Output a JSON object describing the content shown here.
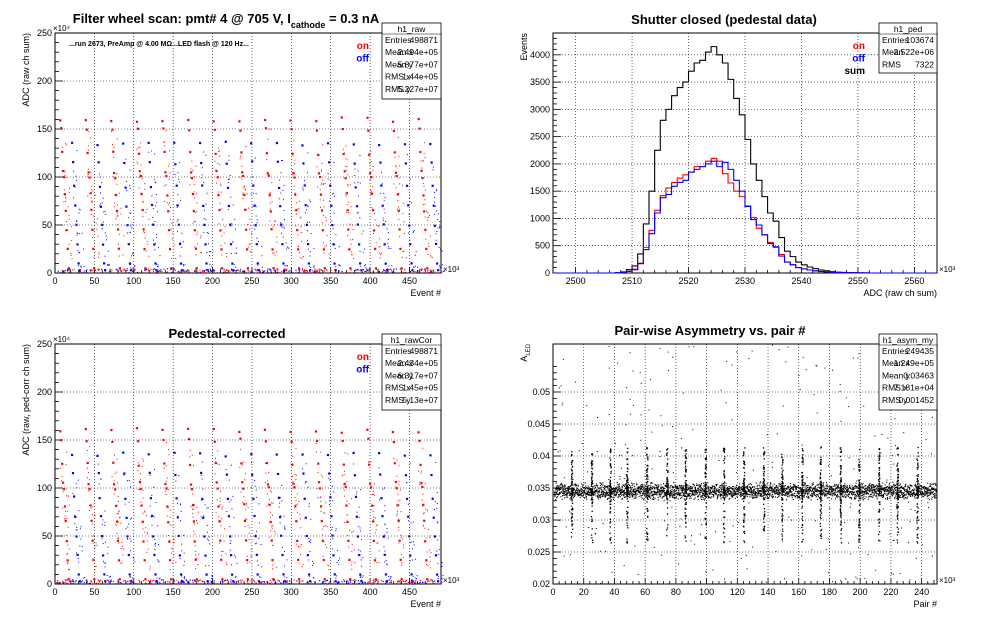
{
  "figure": {
    "colors": {
      "on": "#ff0000",
      "off": "#0000ff",
      "sum": "#000000",
      "axis": "#000000",
      "grid": "#000000"
    }
  },
  "chart_data": [
    {
      "id": "raw",
      "type": "scatter",
      "title": "Filter wheel scan: pmt#   4 @   705 V, I",
      "title_sub": "cathode",
      "title_tail": " = 0.3 nA",
      "annotation": "...run 2673, PreAmp @ 4.00 MΩ...LED flash @  120 Hz...",
      "xlabel": "Event #",
      "ylabel": "ADC (raw ch sum)",
      "xlim": [
        0,
        490000
      ],
      "ylim": [
        0,
        2500000
      ],
      "x_exponent": "×10³",
      "y_exponent": "×10⁴",
      "xticks": [
        0,
        50000,
        100000,
        150000,
        200000,
        250000,
        300000,
        350000,
        400000,
        450000
      ],
      "xtick_labels": [
        "0",
        "50",
        "100",
        "150",
        "200",
        "250",
        "300",
        "350",
        "400",
        "450"
      ],
      "yticks": [
        0,
        500000,
        1000000,
        1500000,
        2000000,
        2500000
      ],
      "ytick_labels": [
        "0",
        "50",
        "100",
        "150",
        "200",
        "250"
      ],
      "legend": [
        {
          "label": "on",
          "color": "#ff0000"
        },
        {
          "label": "off",
          "color": "#0000ff"
        }
      ],
      "stats": {
        "name": "h1_raw",
        "rows": [
          {
            "label": "Entries",
            "value": "498871"
          },
          {
            "label": "Mean x",
            "value": "2.494e+05"
          },
          {
            "label": "Mean y",
            "value": "5.877e+07"
          },
          {
            "label": "RMS x",
            "value": "1.44e+05"
          },
          {
            "label": "RMS y",
            "value": "5.227e+07"
          }
        ]
      },
      "levels_on": [
        1600000,
        1500000,
        1250000,
        1050000,
        1000000,
        820000,
        650000,
        450000,
        250000,
        50000
      ],
      "levels_off": [
        1350000,
        1150000,
        900000,
        700000,
        500000,
        300000,
        100000,
        30000
      ],
      "cycle_period": 32500,
      "cycle_count": 15
    },
    {
      "id": "ped",
      "type": "line",
      "title": "Shutter closed (pedestal data)",
      "xlabel": "ADC (raw ch sum)",
      "ylabel": "Events",
      "xlim": [
        2496000,
        2564000
      ],
      "ylim": [
        0,
        4400
      ],
      "x_exponent": "×10³",
      "xticks": [
        2500000,
        2510000,
        2520000,
        2530000,
        2540000,
        2550000,
        2560000
      ],
      "xtick_labels": [
        "2500",
        "2510",
        "2520",
        "2530",
        "2540",
        "2550",
        "2560"
      ],
      "yticks": [
        0,
        500,
        1000,
        1500,
        2000,
        2500,
        3000,
        3500,
        4000
      ],
      "ytick_labels": [
        "0",
        "500",
        "1000",
        "1500",
        "2000",
        "2500",
        "3000",
        "3500",
        "4000"
      ],
      "legend": [
        {
          "label": "on",
          "color": "#ff0000"
        },
        {
          "label": "off",
          "color": "#0000ff"
        },
        {
          "label": "sum",
          "color": "#000000"
        }
      ],
      "stats": {
        "name": "h1_ped",
        "rows": [
          {
            "label": "Entries",
            "value": "103674"
          },
          {
            "label": "Mean",
            "value": "2.522e+06"
          },
          {
            "label": "RMS",
            "value": "7322"
          }
        ]
      },
      "bin_edges_start": 2496000,
      "bin_width": 1000,
      "series": [
        {
          "name": "sum",
          "color": "#000000",
          "values": [
            0,
            0,
            0,
            0,
            0,
            0,
            0,
            0,
            0,
            0,
            0,
            5,
            20,
            60,
            130,
            350,
            900,
            1500,
            2250,
            2800,
            3000,
            3250,
            3400,
            3500,
            3700,
            3850,
            3900,
            4050,
            4150,
            4000,
            3850,
            3550,
            3200,
            2900,
            2450,
            2000,
            1700,
            1400,
            1100,
            950,
            650,
            400,
            300,
            200,
            150,
            110,
            80,
            55,
            40,
            25,
            15,
            10,
            8,
            5,
            3,
            2,
            0,
            0,
            0,
            0,
            0,
            0,
            0,
            0,
            0,
            0,
            0,
            0
          ]
        },
        {
          "name": "on",
          "color": "#ff0000",
          "values": [
            0,
            0,
            0,
            0,
            0,
            0,
            0,
            0,
            0,
            0,
            0,
            2,
            10,
            30,
            70,
            180,
            470,
            780,
            1150,
            1420,
            1560,
            1660,
            1740,
            1800,
            1850,
            1950,
            1950,
            2050,
            2100,
            2050,
            1820,
            1650,
            1500,
            1400,
            1230,
            1020,
            820,
            700,
            560,
            470,
            340,
            200,
            150,
            100,
            75,
            55,
            40,
            28,
            20,
            12,
            8,
            5,
            4,
            2,
            1,
            1,
            0,
            0,
            0,
            0,
            0,
            0,
            0,
            0,
            0,
            0,
            0,
            0
          ]
        },
        {
          "name": "off",
          "color": "#0000ff",
          "values": [
            0,
            0,
            0,
            0,
            0,
            0,
            0,
            0,
            0,
            0,
            0,
            3,
            10,
            30,
            60,
            170,
            430,
            720,
            1100,
            1380,
            1440,
            1590,
            1660,
            1700,
            1850,
            1900,
            1950,
            2000,
            2050,
            1950,
            2030,
            1900,
            1700,
            1500,
            1220,
            980,
            880,
            700,
            540,
            480,
            310,
            200,
            150,
            100,
            75,
            55,
            40,
            27,
            20,
            13,
            7,
            5,
            4,
            3,
            2,
            1,
            0,
            0,
            0,
            0,
            0,
            0,
            0,
            0,
            0,
            0,
            0,
            0
          ]
        }
      ]
    },
    {
      "id": "cor",
      "type": "scatter",
      "title": "Pedestal-corrected",
      "xlabel": "Event #",
      "ylabel": "ADC (raw, ped-corr ch sum)",
      "xlim": [
        0,
        490000
      ],
      "ylim": [
        0,
        2500000
      ],
      "x_exponent": "×10³",
      "y_exponent": "×10⁴",
      "xticks": [
        0,
        50000,
        100000,
        150000,
        200000,
        250000,
        300000,
        350000,
        400000,
        450000
      ],
      "xtick_labels": [
        "0",
        "50",
        "100",
        "150",
        "200",
        "250",
        "300",
        "350",
        "400",
        "450"
      ],
      "yticks": [
        0,
        500000,
        1000000,
        1500000,
        2000000,
        2500000
      ],
      "ytick_labels": [
        "0",
        "50",
        "100",
        "150",
        "200",
        "250"
      ],
      "legend": [
        {
          "label": "on",
          "color": "#ff0000"
        },
        {
          "label": "off",
          "color": "#0000ff"
        }
      ],
      "stats": {
        "name": "h1_rawCor",
        "rows": [
          {
            "label": "Entries",
            "value": "498871"
          },
          {
            "label": "Mean x",
            "value": "2.434e+05"
          },
          {
            "label": "Mean y",
            "value": "6.317e+07"
          },
          {
            "label": "RMS x",
            "value": "1.45e+05"
          },
          {
            "label": "RMS y",
            "value": "5.13e+07"
          }
        ]
      },
      "levels_on": [
        1600000,
        1500000,
        1250000,
        1050000,
        1000000,
        820000,
        650000,
        450000,
        250000,
        50000
      ],
      "levels_off": [
        1350000,
        1150000,
        900000,
        700000,
        500000,
        300000,
        100000,
        30000
      ],
      "cycle_period": 32500,
      "cycle_count": 15
    },
    {
      "id": "asym",
      "type": "scatter",
      "title": "Pair-wise Asymmetry vs. pair #",
      "xlabel": "Pair #",
      "ylabel": "A",
      "ylabel_sub": "LED",
      "xlim": [
        0,
        250000
      ],
      "ylim": [
        0.02,
        0.0575
      ],
      "x_exponent": "×10³",
      "xticks": [
        0,
        20000,
        40000,
        60000,
        80000,
        100000,
        120000,
        140000,
        160000,
        180000,
        200000,
        220000,
        240000
      ],
      "xtick_labels": [
        "0",
        "20",
        "40",
        "60",
        "80",
        "100",
        "120",
        "140",
        "160",
        "180",
        "200",
        "220",
        "240"
      ],
      "yticks": [
        0.02,
        0.025,
        0.03,
        0.035,
        0.04,
        0.045,
        0.05
      ],
      "ytick_labels": [
        "0.02",
        "0.025",
        "0.03",
        "0.035",
        "0.04",
        "0.045",
        "0.05"
      ],
      "stats": {
        "name": "h1_asym_my",
        "rows": [
          {
            "label": "Entries",
            "value": "249435"
          },
          {
            "label": "Mean x",
            "value": "1.249e+05"
          },
          {
            "label": "Mean y",
            "value": "0.03463"
          },
          {
            "label": "RMS x",
            "value": "7.181e+04"
          },
          {
            "label": "RMS y",
            "value": "0.001452"
          }
        ]
      },
      "band_center": 0.0346,
      "band_halfwidth": 0.0012,
      "spike_positions": [
        12000,
        25000,
        37000,
        48000,
        61000,
        74000,
        86000,
        99000,
        111000,
        124000,
        137000,
        149000,
        162000,
        174000,
        187000,
        199000,
        212000,
        224000,
        237000
      ],
      "spike_top": 0.0415,
      "spike_bottom": 0.0265
    }
  ]
}
